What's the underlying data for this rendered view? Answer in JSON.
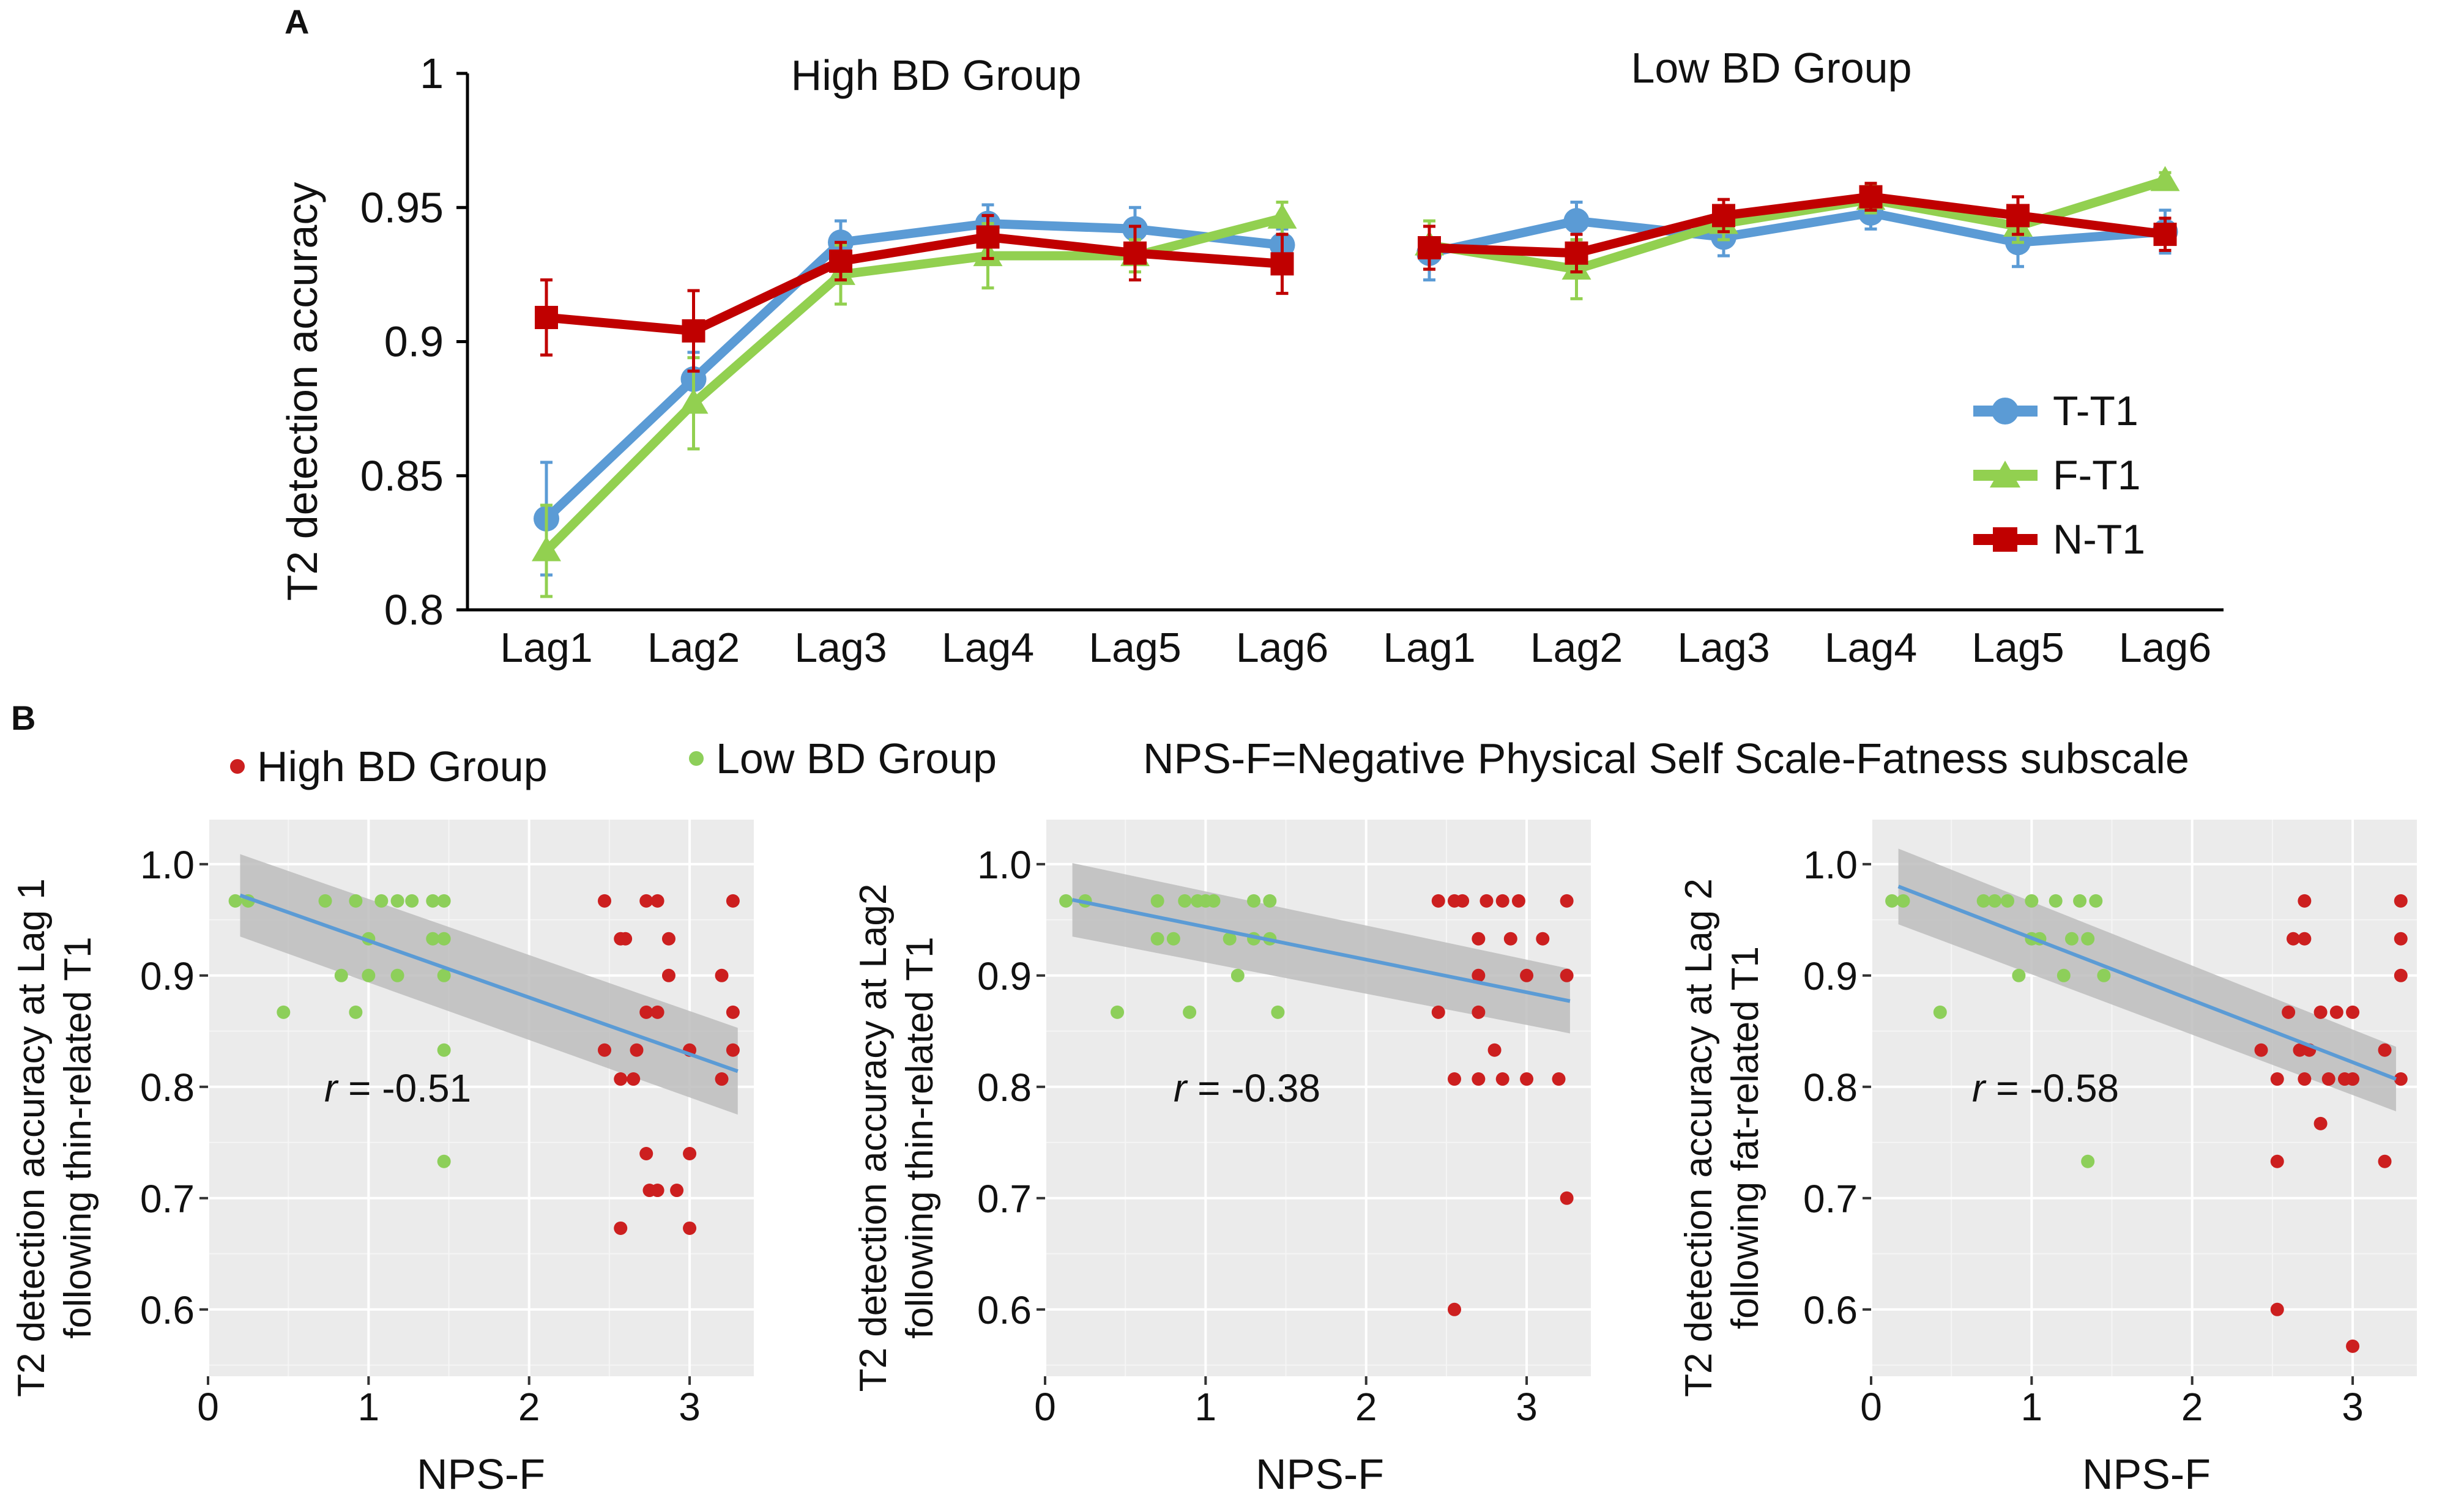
{
  "panel_labels": {
    "a": "A",
    "b": "B"
  },
  "colors": {
    "thin": "#5b9bd5",
    "fat": "#92d050",
    "neutral": "#c00000",
    "high": "#cc1f1f",
    "low": "#8dcf5a",
    "fit": "#5b9bd5",
    "band": "#bdbdbd",
    "plot_bg": "#ebebeb",
    "grid": "#ffffff"
  },
  "chart_data": [
    {
      "id": "A",
      "type": "line",
      "title": "",
      "ylabel": "T2 detection accuracy",
      "xlabel": "",
      "ylim": [
        0.8,
        1
      ],
      "yticks": [
        0.8,
        0.85,
        0.9,
        0.95,
        1
      ],
      "ytick_labels": [
        "0.8",
        "0.85",
        "0.9",
        "0.95",
        "1"
      ],
      "categories": [
        "Lag1",
        "Lag2",
        "Lag3",
        "Lag4",
        "Lag5",
        "Lag6",
        "Lag1",
        "Lag2",
        "Lag3",
        "Lag4",
        "Lag5",
        "Lag6"
      ],
      "group_labels": [
        "High BD Group",
        "Low BD Group"
      ],
      "legend": [
        "T-T1",
        "F-T1",
        "N-T1"
      ],
      "legend_position": "right",
      "series": [
        {
          "name": "T-T1",
          "color": "#5b9bd5",
          "marker": "circle",
          "values": [
            0.834,
            0.886,
            0.937,
            0.944,
            0.942,
            0.936,
            0.933,
            0.945,
            0.939,
            0.948,
            0.937,
            0.941
          ],
          "errors": [
            0.021,
            0.01,
            0.008,
            0.007,
            0.008,
            0.006,
            0.01,
            0.007,
            0.007,
            0.006,
            0.009,
            0.008
          ]
        },
        {
          "name": "F-T1",
          "color": "#92d050",
          "marker": "triangle",
          "values": [
            0.822,
            0.877,
            0.925,
            0.932,
            0.932,
            0.946,
            0.936,
            0.927,
            0.944,
            0.953,
            0.943,
            0.96
          ],
          "errors": [
            0.017,
            0.017,
            0.011,
            0.012,
            0.006,
            0.006,
            0.009,
            0.011,
            0.006,
            0.005,
            0.006,
            0.003
          ]
        },
        {
          "name": "N-T1",
          "color": "#c00000",
          "marker": "square",
          "values": [
            0.909,
            0.904,
            0.93,
            0.939,
            0.933,
            0.929,
            0.935,
            0.933,
            0.947,
            0.954,
            0.947,
            0.94
          ],
          "errors": [
            0.014,
            0.015,
            0.007,
            0.008,
            0.01,
            0.011,
            0.008,
            0.007,
            0.006,
            0.005,
            0.007,
            0.006
          ]
        }
      ]
    },
    {
      "id": "B1",
      "type": "scatter",
      "xlabel": "NPS-F",
      "ylabel": "T2 detection accuracy at Lag 1",
      "ylabel2": "following thin-related T1",
      "xlim": [
        0,
        3.4
      ],
      "ylim": [
        0.54,
        1.04
      ],
      "xticks": [
        0,
        1,
        2,
        3
      ],
      "xtick_labels": [
        "0",
        "1",
        "2",
        "3"
      ],
      "yticks": [
        0.6,
        0.7,
        0.8,
        0.9,
        1.0
      ],
      "ytick_labels": [
        "0.6",
        "0.7",
        "0.8",
        "0.9",
        "1.0"
      ],
      "annotation": {
        "r_label": "r",
        "value": " = -0.51"
      },
      "fit": {
        "x": [
          0.2,
          3.3
        ],
        "y": [
          0.972,
          0.814
        ],
        "ci_lower": [
          0.935,
          0.775
        ],
        "ci_upper": [
          1.009,
          0.853
        ]
      },
      "series": [
        {
          "name": "Low BD Group",
          "color": "#8dcf5a",
          "x": [
            0.17,
            0.25,
            0.47,
            0.73,
            0.83,
            0.92,
            0.92,
            1.0,
            1.0,
            1.08,
            1.18,
            1.18,
            1.27,
            1.4,
            1.4,
            1.47,
            1.47,
            1.47,
            1.47,
            1.47
          ],
          "y": [
            0.967,
            0.967,
            0.867,
            0.967,
            0.9,
            0.967,
            0.867,
            0.933,
            0.9,
            0.967,
            0.967,
            0.9,
            0.967,
            0.967,
            0.933,
            0.967,
            0.933,
            0.9,
            0.833,
            0.733
          ]
        },
        {
          "name": "High BD Group",
          "color": "#cc1f1f",
          "x": [
            2.47,
            2.47,
            2.57,
            2.57,
            2.57,
            2.6,
            2.65,
            2.67,
            2.73,
            2.73,
            2.73,
            2.75,
            2.8,
            2.8,
            2.8,
            2.87,
            2.87,
            2.92,
            3.0,
            3.0,
            3.0,
            3.2,
            3.2,
            3.27,
            3.27,
            3.27
          ],
          "y": [
            0.967,
            0.833,
            0.933,
            0.807,
            0.673,
            0.933,
            0.807,
            0.833,
            0.967,
            0.867,
            0.74,
            0.707,
            0.967,
            0.867,
            0.707,
            0.933,
            0.9,
            0.707,
            0.833,
            0.74,
            0.673,
            0.9,
            0.807,
            0.967,
            0.867,
            0.833
          ]
        }
      ]
    },
    {
      "id": "B2",
      "type": "scatter",
      "xlabel": "NPS-F",
      "ylabel": "T2 detection accuracy at Lag2",
      "ylabel2": "following thin-related T1",
      "xlim": [
        0,
        3.4
      ],
      "ylim": [
        0.54,
        1.04
      ],
      "xticks": [
        0,
        1,
        2,
        3
      ],
      "xtick_labels": [
        "0",
        "1",
        "2",
        "3"
      ],
      "yticks": [
        0.6,
        0.7,
        0.8,
        0.9,
        1.0
      ],
      "ytick_labels": [
        "0.6",
        "0.7",
        "0.8",
        "0.9",
        "1.0"
      ],
      "annotation": {
        "r_label": "r",
        "value": " = -0.38"
      },
      "fit": {
        "x": [
          0.17,
          3.27
        ],
        "y": [
          0.968,
          0.877
        ],
        "ci_lower": [
          0.935,
          0.848
        ],
        "ci_upper": [
          1.001,
          0.906
        ]
      },
      "series": [
        {
          "name": "Low BD Group",
          "color": "#8dcf5a",
          "x": [
            0.13,
            0.25,
            0.45,
            0.7,
            0.7,
            0.8,
            0.87,
            0.9,
            0.95,
            1.0,
            1.05,
            1.15,
            1.2,
            1.3,
            1.3,
            1.4,
            1.4,
            1.45
          ],
          "y": [
            0.967,
            0.967,
            0.867,
            0.967,
            0.933,
            0.933,
            0.967,
            0.867,
            0.967,
            0.967,
            0.967,
            0.933,
            0.9,
            0.967,
            0.933,
            0.967,
            0.933,
            0.867
          ],
          "y_extra": []
        },
        {
          "name": "High BD Group",
          "color": "#cc1f1f",
          "x": [
            2.45,
            2.45,
            2.55,
            2.55,
            2.55,
            2.6,
            2.7,
            2.7,
            2.7,
            2.7,
            2.75,
            2.8,
            2.85,
            2.85,
            2.9,
            2.95,
            3.0,
            3.0,
            3.1,
            3.2,
            3.25,
            3.25,
            3.25
          ],
          "y": [
            0.967,
            0.867,
            0.967,
            0.807,
            0.6,
            0.967,
            0.933,
            0.9,
            0.867,
            0.807,
            0.967,
            0.833,
            0.967,
            0.807,
            0.933,
            0.967,
            0.9,
            0.807,
            0.933,
            0.807,
            0.967,
            0.9,
            0.7
          ]
        }
      ]
    },
    {
      "id": "B3",
      "type": "scatter",
      "xlabel": "NPS-F",
      "ylabel": "T2 detection accuracy at Lag 2",
      "ylabel2": "following fat-related T1",
      "xlim": [
        0,
        3.4
      ],
      "ylim": [
        0.54,
        1.04
      ],
      "xticks": [
        0,
        1,
        2,
        3
      ],
      "xtick_labels": [
        "0",
        "1",
        "2",
        "3"
      ],
      "yticks": [
        0.6,
        0.7,
        0.8,
        0.9,
        1.0
      ],
      "ytick_labels": [
        "0.6",
        "0.7",
        "0.8",
        "0.9",
        "1.0"
      ],
      "annotation": {
        "r_label": "r",
        "value": " = -0.58"
      },
      "fit": {
        "x": [
          0.17,
          3.27
        ],
        "y": [
          0.98,
          0.807
        ],
        "ci_lower": [
          0.946,
          0.778
        ],
        "ci_upper": [
          1.014,
          0.836
        ]
      },
      "series": [
        {
          "name": "Low BD Group",
          "color": "#8dcf5a",
          "x": [
            0.13,
            0.2,
            0.43,
            0.7,
            0.77,
            0.85,
            0.92,
            1.0,
            1.0,
            1.05,
            1.15,
            1.2,
            1.25,
            1.3,
            1.35,
            1.35,
            1.4,
            1.45
          ],
          "y": [
            0.967,
            0.967,
            0.867,
            0.967,
            0.967,
            0.967,
            0.9,
            0.967,
            0.933,
            0.933,
            0.967,
            0.9,
            0.933,
            0.967,
            0.933,
            0.733,
            0.967,
            0.9
          ]
        },
        {
          "name": "High BD Group",
          "color": "#cc1f1f",
          "x": [
            2.43,
            2.53,
            2.53,
            2.53,
            2.6,
            2.63,
            2.67,
            2.7,
            2.7,
            2.7,
            2.73,
            2.8,
            2.8,
            2.85,
            2.9,
            2.95,
            3.0,
            3.0,
            3.0,
            3.2,
            3.2,
            3.3,
            3.3,
            3.3,
            3.3
          ],
          "y": [
            0.833,
            0.807,
            0.733,
            0.6,
            0.867,
            0.933,
            0.833,
            0.967,
            0.933,
            0.807,
            0.833,
            0.867,
            0.767,
            0.807,
            0.867,
            0.807,
            0.867,
            0.807,
            0.567,
            0.833,
            0.733,
            0.967,
            0.933,
            0.9,
            0.807
          ]
        }
      ]
    }
  ],
  "legend_b": {
    "high": "High BD Group",
    "low": "Low BD Group"
  },
  "nps_note": "NPS-F=Negative Physical Self Scale-Fatness subscale"
}
